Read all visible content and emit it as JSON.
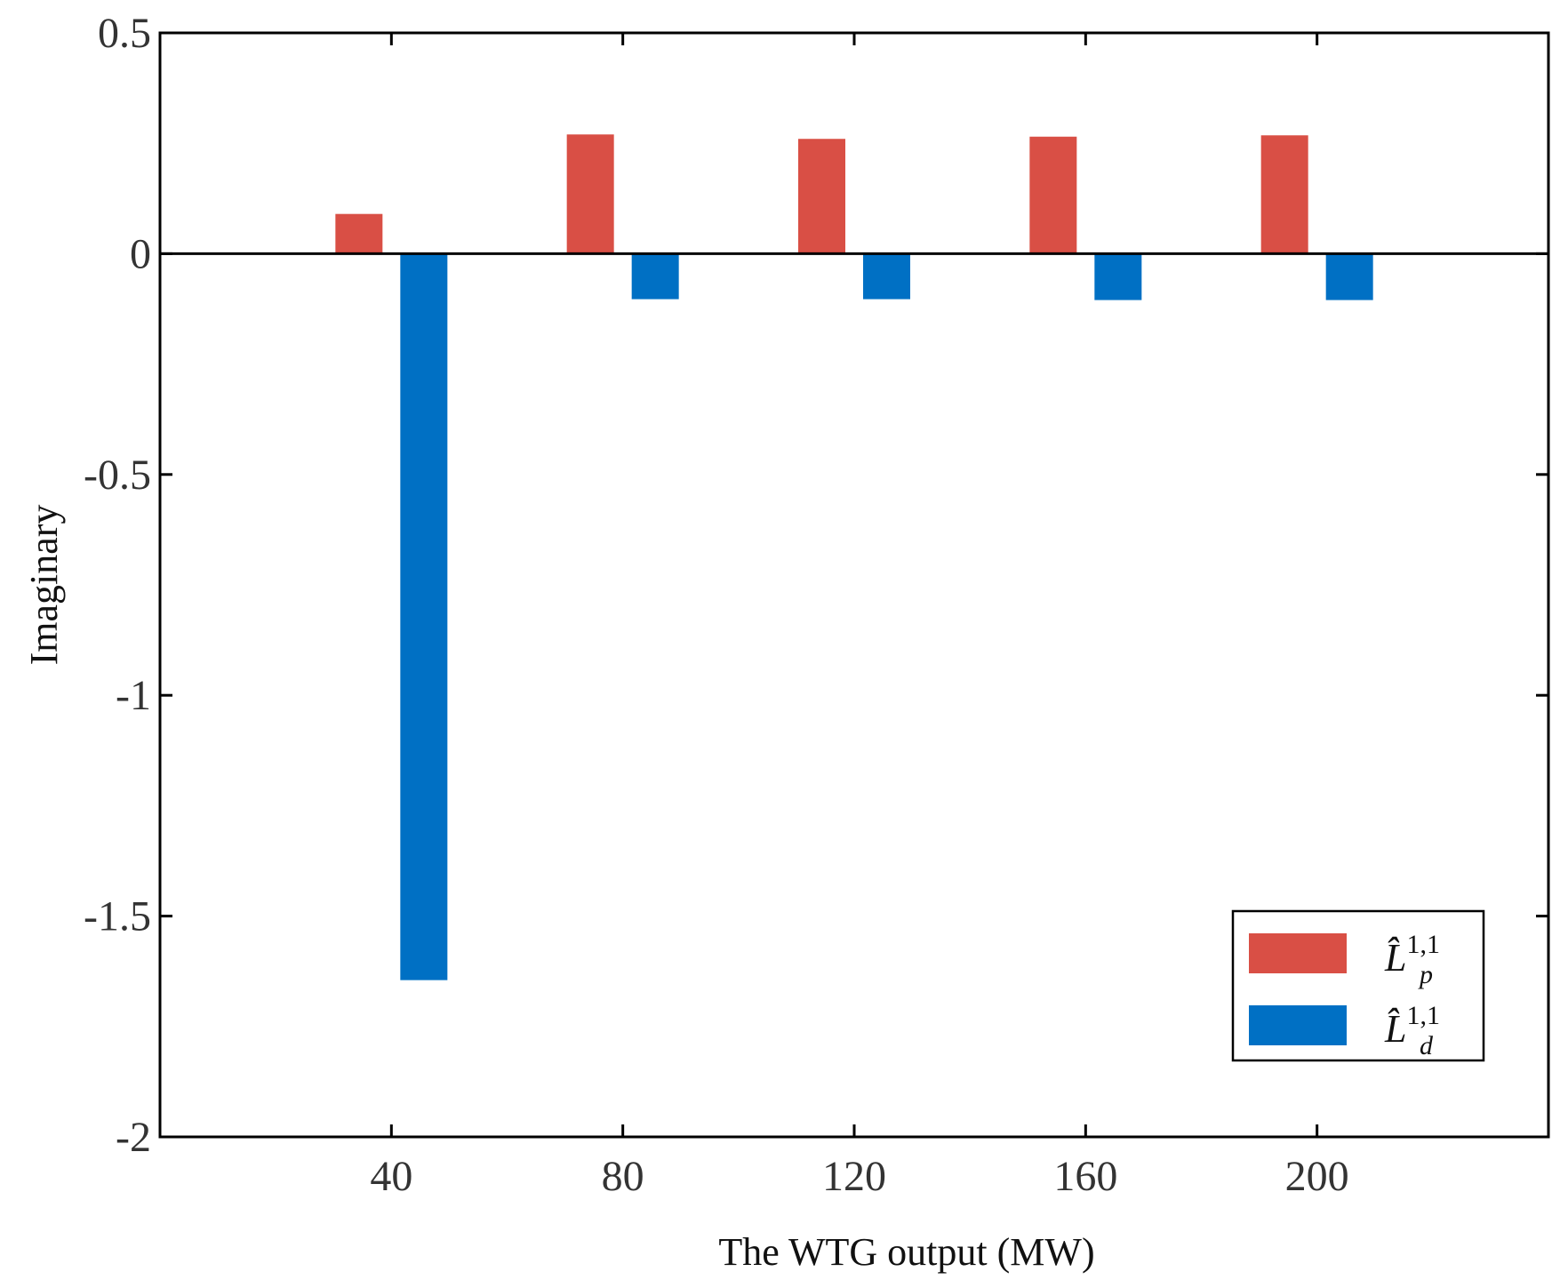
{
  "chart_data": {
    "type": "bar",
    "title": "",
    "xlabel": "The WTG output (MW)",
    "ylabel": "Imaginary",
    "categories": [
      "40",
      "80",
      "120",
      "160",
      "200"
    ],
    "x_values": [
      40,
      80,
      120,
      160,
      200
    ],
    "xlim": [
      0,
      240
    ],
    "ylim": [
      -2,
      0.5
    ],
    "yticks": [
      0.5,
      0,
      -0.5,
      -1,
      -1.5,
      -2
    ],
    "ytick_labels": [
      "0.5",
      "0",
      "-0.5",
      "-1",
      "-1.5",
      "-2"
    ],
    "grid": false,
    "legend_position": "bottom-right",
    "series": [
      {
        "name": "L̂p^1,1",
        "symbol": "L̂",
        "superscript": "1,1",
        "subscript": "p",
        "color": "#d94f45",
        "values": [
          0.09,
          0.27,
          0.26,
          0.265,
          0.268
        ]
      },
      {
        "name": "L̂d^1,1",
        "symbol": "L̂",
        "superscript": "1,1",
        "subscript": "d",
        "color": "#0070c4",
        "values": [
          -1.645,
          -0.103,
          -0.103,
          -0.105,
          -0.105
        ]
      }
    ]
  }
}
